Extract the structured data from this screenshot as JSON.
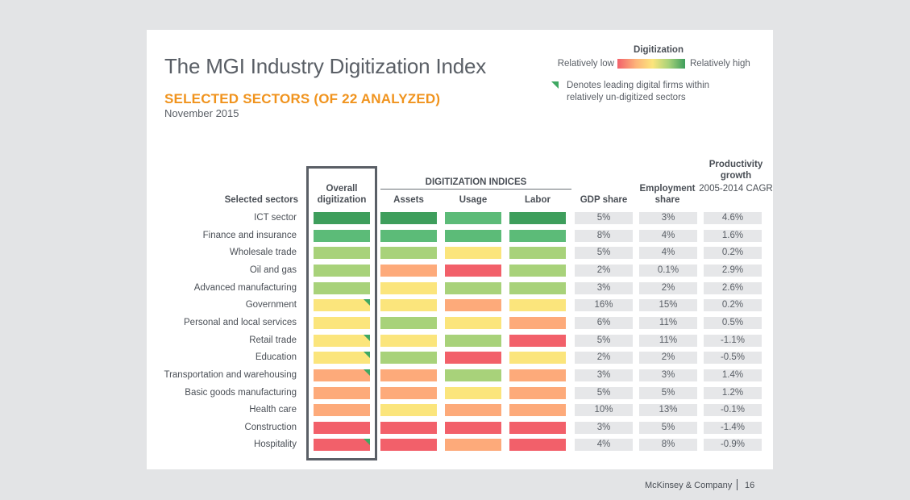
{
  "title": "The MGI Industry Digitization Index",
  "subtitle": "SELECTED SECTORS (OF 22 ANALYZED)",
  "date": "November 2015",
  "legend": {
    "title": "Digitization",
    "low": "Relatively low",
    "high": "Relatively high",
    "note": "Denotes leading digital firms within relatively un-digitized sectors"
  },
  "colors": {
    "5": "#3e9e5c",
    "4": "#5cbb78",
    "3": "#a8d27a",
    "2": "#fbe57c",
    "1": "#fdaa7a",
    "0": "#f2606a",
    "marker": "#3fa862"
  },
  "headers": {
    "sectors": "Selected sectors",
    "overall": "Overall digitization",
    "indices": "DIGITIZATION INDICES",
    "assets": "Assets",
    "usage": "Usage",
    "labor": "Labor",
    "gdp": "GDP share",
    "employment": "Employment share",
    "productivity": "Productivity growth",
    "productivity_sub": "2005-2014 CAGR"
  },
  "chart_data": {
    "type": "table",
    "columns": [
      "Selected sectors",
      "Overall digitization",
      "Assets",
      "Usage",
      "Labor",
      "GDP share",
      "Employment share",
      "Productivity growth 2005-2014 CAGR"
    ],
    "rows": [
      {
        "sector": "ICT sector",
        "overall": 5,
        "assets": 5,
        "usage": 4,
        "labor": 5,
        "marker": false,
        "gdp": "5%",
        "employment": "3%",
        "productivity": "4.6%"
      },
      {
        "sector": "Finance and insurance",
        "overall": 4,
        "assets": 4,
        "usage": 4,
        "labor": 4,
        "marker": false,
        "gdp": "8%",
        "employment": "4%",
        "productivity": "1.6%"
      },
      {
        "sector": "Wholesale trade",
        "overall": 3,
        "assets": 3,
        "usage": 2,
        "labor": 3,
        "marker": false,
        "gdp": "5%",
        "employment": "4%",
        "productivity": "0.2%"
      },
      {
        "sector": "Oil and gas",
        "overall": 3,
        "assets": 1,
        "usage": 0,
        "labor": 3,
        "marker": false,
        "gdp": "2%",
        "employment": "0.1%",
        "productivity": "2.9%"
      },
      {
        "sector": "Advanced manufacturing",
        "overall": 3,
        "assets": 2,
        "usage": 3,
        "labor": 3,
        "marker": false,
        "gdp": "3%",
        "employment": "2%",
        "productivity": "2.6%"
      },
      {
        "sector": "Government",
        "overall": 2,
        "assets": 2,
        "usage": 1,
        "labor": 2,
        "marker": true,
        "gdp": "16%",
        "employment": "15%",
        "productivity": "0.2%"
      },
      {
        "sector": "Personal and local services",
        "overall": 2,
        "assets": 3,
        "usage": 2,
        "labor": 1,
        "marker": false,
        "gdp": "6%",
        "employment": "11%",
        "productivity": "0.5%"
      },
      {
        "sector": "Retail trade",
        "overall": 2,
        "assets": 2,
        "usage": 3,
        "labor": 0,
        "marker": true,
        "gdp": "5%",
        "employment": "11%",
        "productivity": "-1.1%"
      },
      {
        "sector": "Education",
        "overall": 2,
        "assets": 3,
        "usage": 0,
        "labor": 2,
        "marker": true,
        "gdp": "2%",
        "employment": "2%",
        "productivity": "-0.5%"
      },
      {
        "sector": "Transportation and warehousing",
        "overall": 1,
        "assets": 1,
        "usage": 3,
        "labor": 1,
        "marker": true,
        "gdp": "3%",
        "employment": "3%",
        "productivity": "1.4%"
      },
      {
        "sector": "Basic goods manufacturing",
        "overall": 1,
        "assets": 1,
        "usage": 2,
        "labor": 1,
        "marker": false,
        "gdp": "5%",
        "employment": "5%",
        "productivity": "1.2%"
      },
      {
        "sector": "Health care",
        "overall": 1,
        "assets": 2,
        "usage": 1,
        "labor": 1,
        "marker": false,
        "gdp": "10%",
        "employment": "13%",
        "productivity": "-0.1%"
      },
      {
        "sector": "Construction",
        "overall": 0,
        "assets": 0,
        "usage": 0,
        "labor": 0,
        "marker": false,
        "gdp": "3%",
        "employment": "5%",
        "productivity": "-1.4%"
      },
      {
        "sector": "Hospitality",
        "overall": 0,
        "assets": 0,
        "usage": 1,
        "labor": 0,
        "marker": true,
        "gdp": "4%",
        "employment": "8%",
        "productivity": "-0.9%"
      }
    ]
  },
  "footer": {
    "company": "McKinsey & Company",
    "page": "16"
  }
}
